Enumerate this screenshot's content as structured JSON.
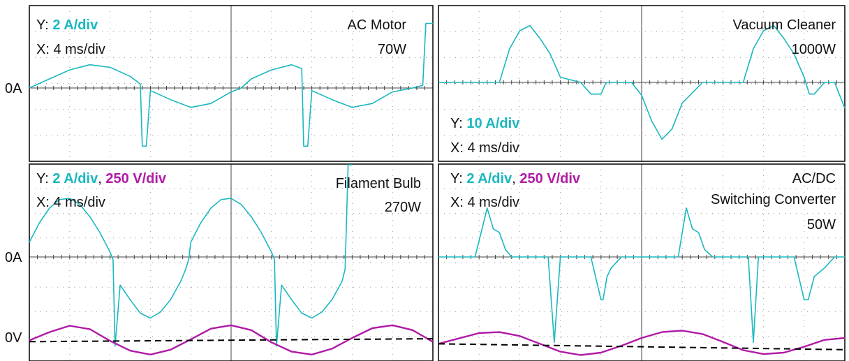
{
  "colors": {
    "current": "#1ab8bf",
    "voltage": "#b01aa6",
    "grid": "#000000",
    "reference": "#000000"
  },
  "axis_labels": {
    "zero_current": "0A",
    "zero_voltage": "0V"
  },
  "chart_data": [
    {
      "type": "line",
      "title": "AC Motor",
      "power": "70W",
      "scale": {
        "y_prefix": "Y:",
        "current": "2 A/div",
        "voltage": "",
        "x": "X: 4 ms/div"
      },
      "x_range_ms": [
        0,
        40
      ],
      "series": [
        {
          "name": "",
          "kind": "current",
          "unit": "A",
          "x": [
            0,
            2,
            4,
            6,
            8,
            10,
            11,
            11.2,
            11.6,
            12,
            14,
            16,
            18,
            20,
            21,
            22,
            24,
            26,
            27,
            27.2,
            27.6,
            28,
            30,
            32,
            34,
            36,
            38,
            39,
            39.3,
            40
          ],
          "y": [
            0,
            0.7,
            1.4,
            1.8,
            1.6,
            0.9,
            0.3,
            -4.5,
            -4.5,
            -0.2,
            -0.9,
            -1.5,
            -1.2,
            -0.3,
            0,
            0.7,
            1.4,
            1.8,
            1.5,
            -4.5,
            -4.5,
            -0.2,
            -0.9,
            -1.5,
            -1.2,
            -0.3,
            0,
            0.2,
            5.0,
            5.0
          ]
        }
      ]
    },
    {
      "type": "line",
      "title": "Vacuum Cleaner",
      "power": "1000W",
      "scale": {
        "y_prefix": "Y:",
        "current": "10 A/div",
        "voltage": "",
        "x": "X: 4 ms/div"
      },
      "x_range_ms": [
        0,
        40
      ],
      "series": [
        {
          "name": "",
          "kind": "current",
          "unit": "A",
          "x": [
            0,
            6,
            7,
            8,
            9,
            10,
            11,
            12,
            14,
            15,
            16,
            16.5,
            17,
            19,
            20,
            21,
            22,
            23,
            24,
            26,
            28,
            30,
            31,
            32,
            33,
            34,
            35,
            36,
            36.5,
            37,
            38,
            39,
            40
          ],
          "y": [
            0,
            0,
            13,
            20,
            22,
            17,
            11,
            2,
            0,
            -4.5,
            -4.5,
            0,
            0,
            0,
            -5,
            -15,
            -22,
            -18,
            -8,
            0,
            0,
            0,
            13,
            20,
            22,
            17,
            11,
            2,
            -4.5,
            -4.5,
            0,
            0,
            -10
          ]
        }
      ]
    },
    {
      "type": "line",
      "title": "Filament Bulb",
      "power": "270W",
      "scale": {
        "y_prefix": "Y:",
        "current": "2 A/div",
        "voltage": "250 V/div",
        "x": "X: 4 ms/div"
      },
      "x_range_ms": [
        0,
        40
      ],
      "series": [
        {
          "name": "",
          "kind": "current",
          "unit": "A",
          "x": [
            0,
            1,
            2,
            3,
            4,
            5,
            6,
            7,
            8,
            8.3,
            8.5,
            9,
            10,
            11,
            12,
            13,
            14,
            15,
            15.5,
            15.8,
            16,
            17,
            18,
            19,
            20,
            21,
            22,
            23,
            24,
            24.3,
            24.5,
            25,
            26,
            27,
            28,
            29,
            30,
            31,
            31.3,
            31.6,
            32
          ],
          "y": [
            1.2,
            2.8,
            4.0,
            4.7,
            4.8,
            4.3,
            3.3,
            2.0,
            0.4,
            -0.2,
            -7.3,
            -2.3,
            -3.5,
            -4.6,
            -5.0,
            -4.5,
            -3.5,
            -2.0,
            -1.0,
            -0.2,
            1.2,
            2.8,
            4.0,
            4.7,
            4.8,
            4.3,
            3.3,
            2.0,
            0.4,
            -0.2,
            -7.3,
            -2.3,
            -3.5,
            -4.6,
            -5.0,
            -4.5,
            -3.5,
            -2.0,
            -1.0,
            8.5,
            8.5
          ]
        },
        {
          "name": "",
          "kind": "voltage",
          "unit": "V",
          "x": [
            0,
            2,
            4,
            6,
            8,
            10,
            12,
            14,
            16,
            18,
            20,
            22,
            24,
            26,
            28,
            30,
            32,
            34,
            36,
            38,
            40
          ],
          "y": [
            -25,
            60,
            125,
            90,
            -30,
            -130,
            -170,
            -120,
            -15,
            95,
            130,
            80,
            -45,
            -140,
            -170,
            -110,
            0,
            100,
            130,
            80,
            -40
          ]
        },
        {
          "name": "",
          "kind": "reference",
          "unit": "V",
          "x": [
            0,
            40
          ],
          "y": [
            -38,
            -8
          ]
        }
      ]
    },
    {
      "type": "line",
      "title": "AC/DC Switching Converter",
      "power": "50W",
      "scale": {
        "y_prefix": "Y:",
        "current": "2 A/div",
        "voltage": "250 V/div",
        "x": "X: 4 ms/div"
      },
      "x_range_ms": [
        0,
        40
      ],
      "series": [
        {
          "name": "",
          "kind": "current",
          "unit": "A",
          "x": [
            0,
            3.6,
            4.8,
            5.4,
            6.0,
            6.6,
            7.2,
            8,
            9,
            10.8,
            11.4,
            12,
            13,
            14,
            15,
            16,
            16.2,
            16.6,
            17,
            18,
            19,
            20,
            21,
            22.0,
            23.6,
            24.4,
            25.0,
            25.6,
            26.2,
            27,
            28,
            30,
            30.5,
            31,
            31.5,
            32,
            33,
            34,
            35,
            36,
            36.4,
            37,
            38,
            39,
            40
          ],
          "y": [
            0,
            0,
            4.0,
            2.3,
            2.0,
            0.6,
            0,
            0,
            0,
            0,
            -7.0,
            0,
            0,
            0,
            0,
            -3.5,
            -3.5,
            -1.6,
            -0.9,
            0,
            0,
            0,
            0,
            0,
            0,
            4.0,
            2.3,
            2.0,
            0.6,
            0,
            0,
            0,
            0,
            -7.0,
            0,
            0,
            0,
            0,
            0,
            -3.5,
            -3.5,
            -1.6,
            -0.9,
            0,
            0
          ]
        },
        {
          "name": "",
          "kind": "voltage",
          "unit": "V",
          "x": [
            0,
            2,
            4,
            6,
            8,
            10,
            12,
            14,
            16,
            18,
            20,
            22,
            24,
            26,
            28,
            30,
            32,
            34,
            36,
            38,
            40
          ],
          "y": [
            -60,
            -5,
            50,
            60,
            20,
            -60,
            -140,
            -175,
            -150,
            -80,
            0,
            60,
            75,
            40,
            -40,
            -125,
            -165,
            -150,
            -90,
            -20,
            0
          ]
        },
        {
          "name": "",
          "kind": "reference",
          "unit": "V",
          "x": [
            0,
            40
          ],
          "y": [
            -60,
            -120
          ]
        }
      ]
    }
  ]
}
